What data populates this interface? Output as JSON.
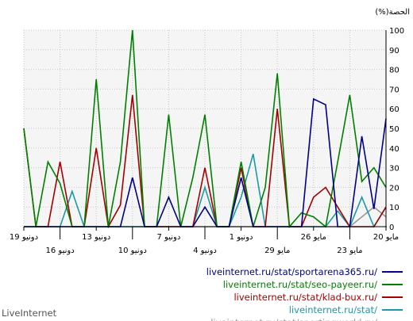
{
  "brand": "LiveInternet",
  "chart_data": {
    "type": "line",
    "ylabel": "(%)الحصة",
    "ylim": [
      0,
      100
    ],
    "yticks": [
      "0",
      "10",
      "20",
      "30",
      "40",
      "50",
      "60",
      "70",
      "80",
      "90",
      "100"
    ],
    "x": [
      "20",
      "21",
      "22",
      "23",
      "24",
      "25",
      "26",
      "27",
      "28",
      "29",
      "30",
      "31",
      "1",
      "2",
      "3",
      "4",
      "5",
      "6",
      "7",
      "8",
      "9",
      "10",
      "11",
      "12",
      "13",
      "14",
      "15",
      "16",
      "17",
      "18",
      "19"
    ],
    "xtick_labels": [
      {
        "i": 0,
        "row": 0,
        "text": "20 مايو"
      },
      {
        "i": 3,
        "row": 1,
        "text": "23 مايو"
      },
      {
        "i": 6,
        "row": 0,
        "text": "26 مايو"
      },
      {
        "i": 9,
        "row": 1,
        "text": "29 مايو"
      },
      {
        "i": 12,
        "row": 0,
        "text": "1 دونيو"
      },
      {
        "i": 15,
        "row": 1,
        "text": "4 دونيو"
      },
      {
        "i": 18,
        "row": 0,
        "text": "7 دونيو"
      },
      {
        "i": 21,
        "row": 1,
        "text": "10 دونيو"
      },
      {
        "i": 24,
        "row": 0,
        "text": "13 دونيو"
      },
      {
        "i": 27,
        "row": 1,
        "text": "16 دونيو"
      },
      {
        "i": 30,
        "row": 0,
        "text": "19 دونيو"
      }
    ],
    "grid": true,
    "series": [
      {
        "name": "liveinternet.ru/stat/sportarena365.ru/",
        "color": "#00008b",
        "values": [
          55,
          9,
          46,
          0,
          0,
          62,
          65,
          0,
          0,
          0,
          0,
          0,
          25,
          0,
          0,
          10,
          0,
          0,
          15,
          0,
          0,
          25,
          0,
          0,
          0,
          0,
          0,
          0,
          0,
          0,
          0
        ]
      },
      {
        "name": "liveinternet.ru/stat/seo-payeer.ru/",
        "color": "#008000",
        "values": [
          20,
          30,
          23,
          67,
          33,
          0,
          5,
          7,
          0,
          78,
          20,
          0,
          33,
          0,
          0,
          57,
          25,
          0,
          57,
          0,
          0,
          100,
          33,
          0,
          75,
          0,
          0,
          22,
          33,
          0,
          50
        ]
      },
      {
        "name": "liveinternet.ru/stat/klad-bux.ru/",
        "color": "#a50000",
        "values": [
          10,
          0,
          0,
          0,
          10,
          20,
          15,
          0,
          0,
          60,
          0,
          0,
          30,
          0,
          0,
          30,
          0,
          0,
          0,
          0,
          0,
          67,
          11,
          0,
          40,
          0,
          0,
          33,
          0,
          0,
          50
        ]
      },
      {
        "name": "liveinternet.ru/stat/",
        "color": "#1a9aa5",
        "values": [
          10,
          0,
          15,
          0,
          8,
          0,
          0,
          0,
          0,
          0,
          0,
          37,
          15,
          0,
          0,
          20,
          0,
          0,
          0,
          0,
          0,
          0,
          0,
          0,
          0,
          0,
          18,
          0,
          0,
          0,
          0
        ]
      },
      {
        "name": "liveinternet.ru/stat/sportingworld.ru/",
        "color": "#999999",
        "values": [
          5,
          10,
          5,
          0,
          0,
          0,
          0,
          0,
          0,
          0,
          0,
          0,
          0,
          0,
          0,
          0,
          0,
          0,
          0,
          0,
          0,
          0,
          0,
          0,
          0,
          0,
          0,
          0,
          0,
          0,
          0
        ]
      }
    ]
  }
}
